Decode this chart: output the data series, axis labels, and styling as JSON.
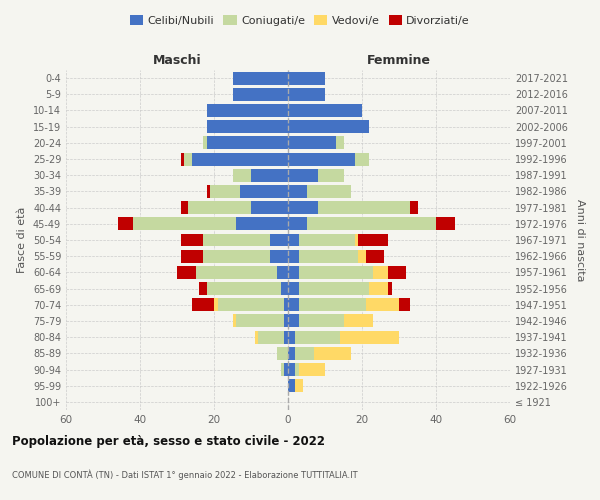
{
  "age_groups": [
    "100+",
    "95-99",
    "90-94",
    "85-89",
    "80-84",
    "75-79",
    "70-74",
    "65-69",
    "60-64",
    "55-59",
    "50-54",
    "45-49",
    "40-44",
    "35-39",
    "30-34",
    "25-29",
    "20-24",
    "15-19",
    "10-14",
    "5-9",
    "0-4"
  ],
  "birth_years": [
    "≤ 1921",
    "1922-1926",
    "1927-1931",
    "1932-1936",
    "1937-1941",
    "1942-1946",
    "1947-1951",
    "1952-1956",
    "1957-1961",
    "1962-1966",
    "1967-1971",
    "1972-1976",
    "1977-1981",
    "1982-1986",
    "1987-1991",
    "1992-1996",
    "1997-2001",
    "2002-2006",
    "2007-2011",
    "2012-2016",
    "2017-2021"
  ],
  "male": {
    "celibe": [
      0,
      0,
      1,
      0,
      1,
      1,
      1,
      2,
      3,
      5,
      5,
      14,
      10,
      13,
      10,
      26,
      22,
      22,
      22,
      15,
      15
    ],
    "coniugato": [
      0,
      0,
      1,
      3,
      7,
      13,
      18,
      20,
      22,
      18,
      18,
      28,
      17,
      8,
      5,
      2,
      1,
      0,
      0,
      0,
      0
    ],
    "vedovo": [
      0,
      0,
      0,
      0,
      1,
      1,
      1,
      0,
      0,
      0,
      0,
      0,
      0,
      0,
      0,
      0,
      0,
      0,
      0,
      0,
      0
    ],
    "divorziato": [
      0,
      0,
      0,
      0,
      0,
      0,
      6,
      2,
      5,
      6,
      6,
      4,
      2,
      1,
      0,
      1,
      0,
      0,
      0,
      0,
      0
    ]
  },
  "female": {
    "nubile": [
      0,
      2,
      2,
      2,
      2,
      3,
      3,
      3,
      3,
      3,
      3,
      5,
      8,
      5,
      8,
      18,
      13,
      22,
      20,
      10,
      10
    ],
    "coniugata": [
      0,
      0,
      1,
      5,
      12,
      12,
      18,
      19,
      20,
      16,
      15,
      35,
      25,
      12,
      7,
      4,
      2,
      0,
      0,
      0,
      0
    ],
    "vedova": [
      0,
      2,
      7,
      10,
      16,
      8,
      9,
      5,
      4,
      2,
      1,
      0,
      0,
      0,
      0,
      0,
      0,
      0,
      0,
      0,
      0
    ],
    "divorziata": [
      0,
      0,
      0,
      0,
      0,
      0,
      3,
      1,
      5,
      5,
      8,
      5,
      2,
      0,
      0,
      0,
      0,
      0,
      0,
      0,
      0
    ]
  },
  "colors": {
    "celibe": "#4472c4",
    "coniugato": "#c5d9a0",
    "vedovo": "#ffd966",
    "divorziato": "#c00000"
  },
  "xlim": 60,
  "title": "Popolazione per età, sesso e stato civile - 2022",
  "subtitle": "COMUNE DI CONTÀ (TN) - Dati ISTAT 1° gennaio 2022 - Elaborazione TUTTITALIA.IT",
  "ylabel_left": "Fasce di età",
  "ylabel_right": "Anni di nascita",
  "col_maschi": "Maschi",
  "col_femmine": "Femmine",
  "legend_labels": [
    "Celibi/Nubili",
    "Coniugati/e",
    "Vedovi/e",
    "Divorziati/e"
  ],
  "background_color": "#f5f5f0"
}
